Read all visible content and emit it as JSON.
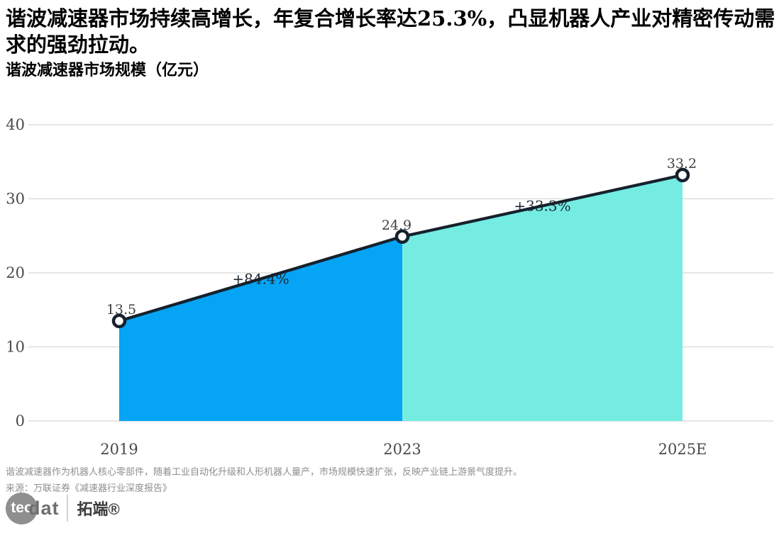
{
  "header": {
    "title": "谐波减速器市场持续高增长，年复合增长率达25.3%，凸显机器人产业对精密传动需求的强劲拉动。"
  },
  "chart_data": {
    "type": "area",
    "title": "谐波减速器市场规模（亿元）",
    "categories": [
      "2019",
      "2023",
      "2025E"
    ],
    "values": [
      13.5,
      24.9,
      33.2
    ],
    "data_labels": [
      "13.5",
      "24.9",
      "33.2"
    ],
    "growth_annotations": [
      "+84.4%",
      "+33.3%"
    ],
    "ylim": [
      0,
      40
    ],
    "yticks": [
      0,
      10,
      20,
      30,
      40
    ],
    "grid": "horizontal",
    "legend": "none",
    "colors": {
      "segment_fills": [
        "#05a4f5",
        "#74ece2"
      ],
      "line": "#16212c",
      "marker_fill": "#ffffff",
      "marker_stroke": "#16212c",
      "grid": "#d8d8d8",
      "tick_text": "#4a4a4a",
      "data_label_text": "#3f3f3f",
      "annotation_text": "#1c2733"
    }
  },
  "footer": {
    "note": "谐波减速器作为机器人核心零部件，随着工业自动化升级和人形机器人量产，市场规模快速扩张，反映产业链上游景气度提升。",
    "source": "来源：万联证券《减速器行业深度报告》",
    "logo": {
      "circle_text": "tec",
      "suffix_text": "dat",
      "brand_cn": "拓端®"
    }
  }
}
